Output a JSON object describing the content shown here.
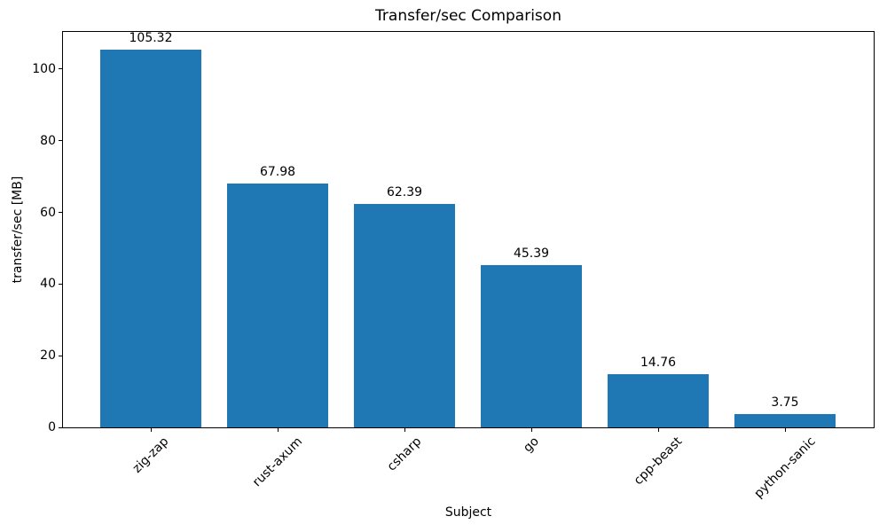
{
  "chart_data": {
    "type": "bar",
    "title": "Transfer/sec Comparison",
    "xlabel": "Subject",
    "ylabel": "transfer/sec [MB]",
    "categories": [
      "zig-zap",
      "rust-axum",
      "csharp",
      "go",
      "cpp-beast",
      "python-sanic"
    ],
    "values": [
      105.32,
      67.98,
      62.39,
      45.39,
      14.76,
      3.75
    ],
    "bar_value_labels": [
      "105.32",
      "67.98",
      "62.39",
      "45.39",
      "14.76",
      "3.75"
    ],
    "yticks": [
      0,
      20,
      40,
      60,
      80,
      100
    ],
    "ylim": [
      0,
      110.6
    ],
    "grid": false,
    "legend_position": "none",
    "bar_color": "#1f77b4",
    "text_color": "#000000",
    "background_color": "#ffffff"
  }
}
